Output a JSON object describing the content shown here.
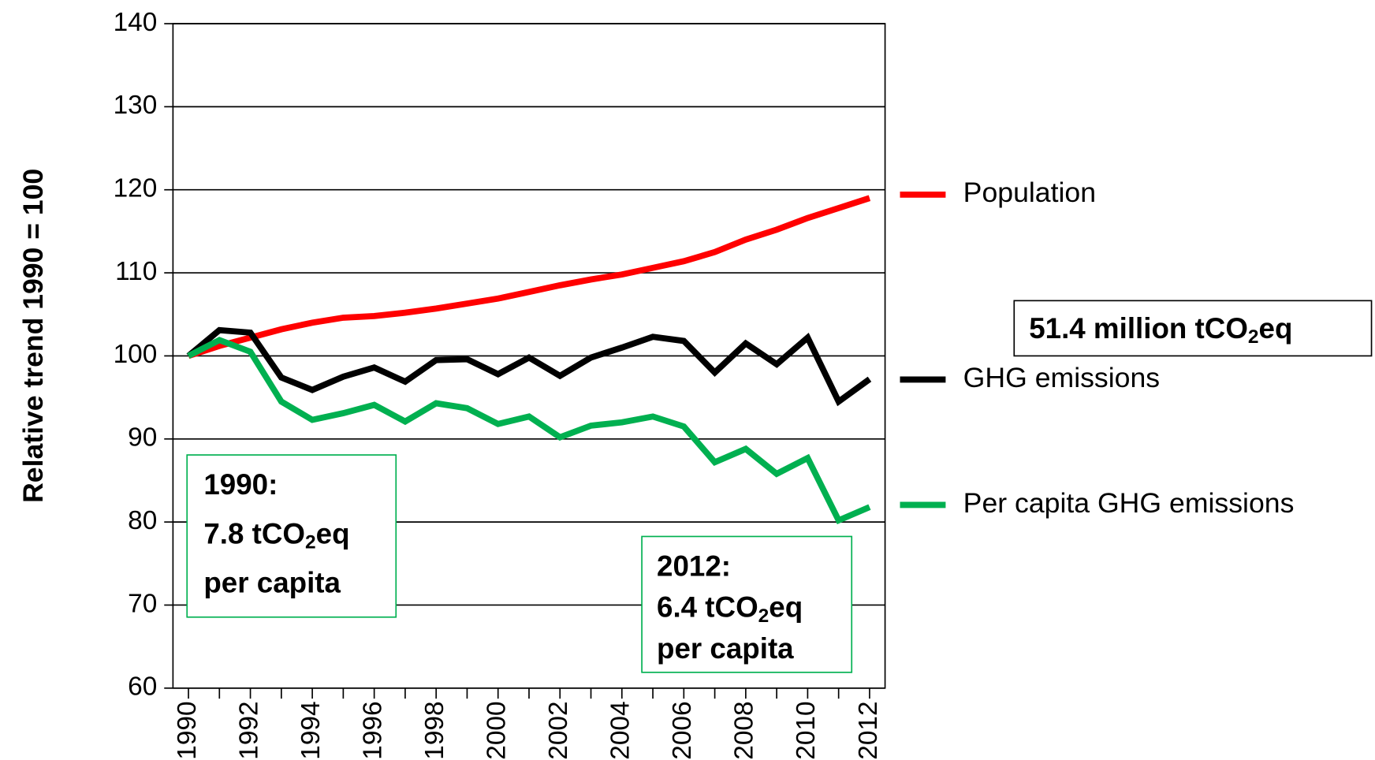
{
  "chart_data": {
    "type": "line",
    "y_label": "Relative trend  1990 = 100",
    "categories": [
      "1990",
      null,
      "1992",
      null,
      "1994",
      null,
      "1996",
      null,
      "1998",
      null,
      "2000",
      null,
      "2002",
      null,
      "2004",
      null,
      "2006",
      null,
      "2008",
      null,
      "2010",
      null,
      "2012"
    ],
    "ylim": [
      60,
      140
    ],
    "yticks": [
      60,
      70,
      80,
      90,
      100,
      110,
      120,
      130,
      140
    ],
    "grid": true,
    "legend": "right",
    "series": [
      {
        "name": "Population",
        "color": "#ff0000",
        "values": [
          100,
          101.2,
          102.2,
          103.2,
          104,
          104.6,
          104.8,
          105.2,
          105.7,
          106.3,
          106.9,
          107.7,
          108.5,
          109.2,
          109.8,
          110.6,
          111.4,
          112.5,
          114,
          115.2,
          116.6,
          117.8,
          119
        ]
      },
      {
        "name": "GHG  emissions",
        "color": "#000000",
        "values": [
          100,
          103.1,
          102.8,
          97.4,
          95.9,
          97.5,
          98.6,
          96.9,
          99.5,
          99.6,
          97.8,
          99.8,
          97.6,
          99.8,
          101,
          102.3,
          101.8,
          98,
          101.5,
          99,
          102.2,
          94.5,
          97.2
        ]
      },
      {
        "name": "Per capita GHG  emissions",
        "color": "#00b050",
        "values": [
          100,
          101.9,
          100.5,
          94.5,
          92.3,
          93.1,
          94.1,
          92.1,
          94.3,
          93.7,
          91.8,
          92.7,
          90.2,
          91.6,
          92,
          92.7,
          91.5,
          87.2,
          88.8,
          85.8,
          87.7,
          80.2,
          81.8
        ]
      }
    ],
    "annotations": [
      {
        "lines": [
          {
            "text": "1990:"
          },
          {
            "text": "7.8 tCO",
            "sub": "2",
            "after": "eq"
          },
          {
            "text": "per capita"
          }
        ],
        "border": "#00b050"
      },
      {
        "lines": [
          {
            "text": "2012:"
          },
          {
            "text": "6.4 tCO",
            "sub": "2",
            "after": "eq"
          },
          {
            "text": "per capita"
          }
        ],
        "border": "#00b050"
      },
      {
        "lines": [
          {
            "text": "51.4 million tCO",
            "sub": "2",
            "after": "eq"
          }
        ],
        "border": "#000000"
      }
    ]
  }
}
